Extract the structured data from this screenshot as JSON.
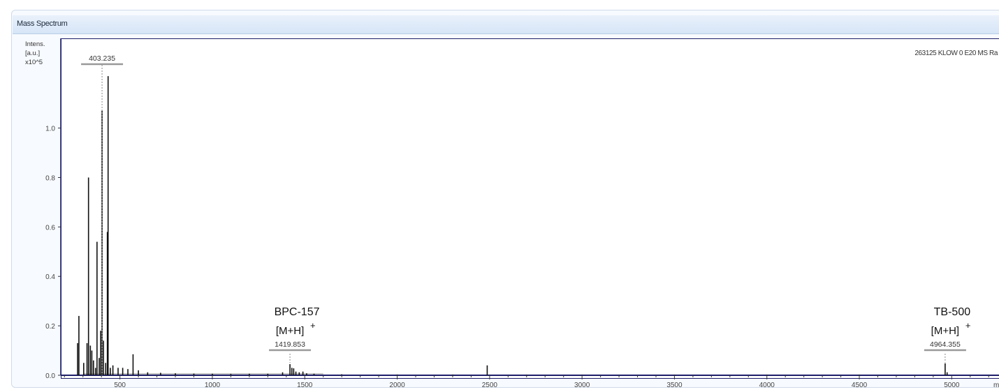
{
  "window": {
    "title": "Mass Spectrum"
  },
  "run_label": "263125 KLOW 0 E20 MS Ra",
  "chart_data": {
    "type": "spectrum",
    "ylabel_lines": [
      "Intens.",
      "[a.u.]",
      "x10^5"
    ],
    "xlabel": "m/z",
    "xlim": [
      180,
      5320
    ],
    "ylim": [
      0,
      1.25
    ],
    "yticks": [
      0.0,
      0.2,
      0.4,
      0.6,
      0.8,
      1.0
    ],
    "ytick_labels": [
      "0.0",
      "0.2",
      "0.4",
      "0.6",
      "0.8",
      "1.0"
    ],
    "xticks": [
      500,
      1000,
      1500,
      2000,
      2500,
      3000,
      3500,
      4000,
      4500,
      5000
    ],
    "xtick_labels": [
      "500",
      "1000",
      "1500",
      "2000",
      "2500",
      "3000",
      "3500",
      "4000",
      "4500",
      "5000"
    ],
    "peaks": [
      {
        "mz": 271,
        "i": 0.13
      },
      {
        "mz": 278,
        "i": 0.24
      },
      {
        "mz": 304,
        "i": 0.05
      },
      {
        "mz": 322,
        "i": 0.13
      },
      {
        "mz": 330,
        "i": 0.8
      },
      {
        "mz": 340,
        "i": 0.12
      },
      {
        "mz": 348,
        "i": 0.1
      },
      {
        "mz": 357,
        "i": 0.06
      },
      {
        "mz": 368,
        "i": 0.03
      },
      {
        "mz": 376,
        "i": 0.54
      },
      {
        "mz": 388,
        "i": 0.07
      },
      {
        "mz": 396,
        "i": 0.18
      },
      {
        "mz": 403.235,
        "i": 1.07
      },
      {
        "mz": 411,
        "i": 0.14
      },
      {
        "mz": 423,
        "i": 0.05
      },
      {
        "mz": 432,
        "i": 0.58
      },
      {
        "mz": 436,
        "i": 1.21
      },
      {
        "mz": 448,
        "i": 0.03
      },
      {
        "mz": 462,
        "i": 0.04
      },
      {
        "mz": 490,
        "i": 0.03
      },
      {
        "mz": 515,
        "i": 0.03
      },
      {
        "mz": 543,
        "i": 0.025
      },
      {
        "mz": 571,
        "i": 0.085
      },
      {
        "mz": 600,
        "i": 0.02
      },
      {
        "mz": 650,
        "i": 0.012
      },
      {
        "mz": 720,
        "i": 0.01
      },
      {
        "mz": 800,
        "i": 0.008
      },
      {
        "mz": 900,
        "i": 0.007
      },
      {
        "mz": 1000,
        "i": 0.006
      },
      {
        "mz": 1100,
        "i": 0.005
      },
      {
        "mz": 1200,
        "i": 0.006
      },
      {
        "mz": 1300,
        "i": 0.006
      },
      {
        "mz": 1380,
        "i": 0.012
      },
      {
        "mz": 1419.853,
        "i": 0.045
      },
      {
        "mz": 1430,
        "i": 0.03
      },
      {
        "mz": 1440,
        "i": 0.028
      },
      {
        "mz": 1452,
        "i": 0.015
      },
      {
        "mz": 1470,
        "i": 0.012
      },
      {
        "mz": 1490,
        "i": 0.015
      },
      {
        "mz": 1510,
        "i": 0.008
      },
      {
        "mz": 1550,
        "i": 0.006
      },
      {
        "mz": 1700,
        "i": 0.004
      },
      {
        "mz": 2000,
        "i": 0.003
      },
      {
        "mz": 2300,
        "i": 0.003
      },
      {
        "mz": 2487,
        "i": 0.04
      },
      {
        "mz": 2700,
        "i": 0.002
      },
      {
        "mz": 3000,
        "i": 0.002
      },
      {
        "mz": 3500,
        "i": 0.002
      },
      {
        "mz": 4000,
        "i": 0.002
      },
      {
        "mz": 4500,
        "i": 0.002
      },
      {
        "mz": 4964.355,
        "i": 0.048
      },
      {
        "mz": 4975,
        "i": 0.012
      }
    ],
    "annotations": [
      {
        "mz": 403.235,
        "label": "403.235",
        "y": 1.25,
        "dashed": true
      },
      {
        "mz": 1419.853,
        "label": "1419.853",
        "y": 0.075,
        "name": "BPC-157",
        "ion": "[M+H]",
        "charge": "+"
      },
      {
        "mz": 4964.355,
        "label": "4964.355",
        "y": 0.075,
        "name": "TB-500",
        "ion": "[M+H]",
        "charge": "+"
      }
    ]
  }
}
